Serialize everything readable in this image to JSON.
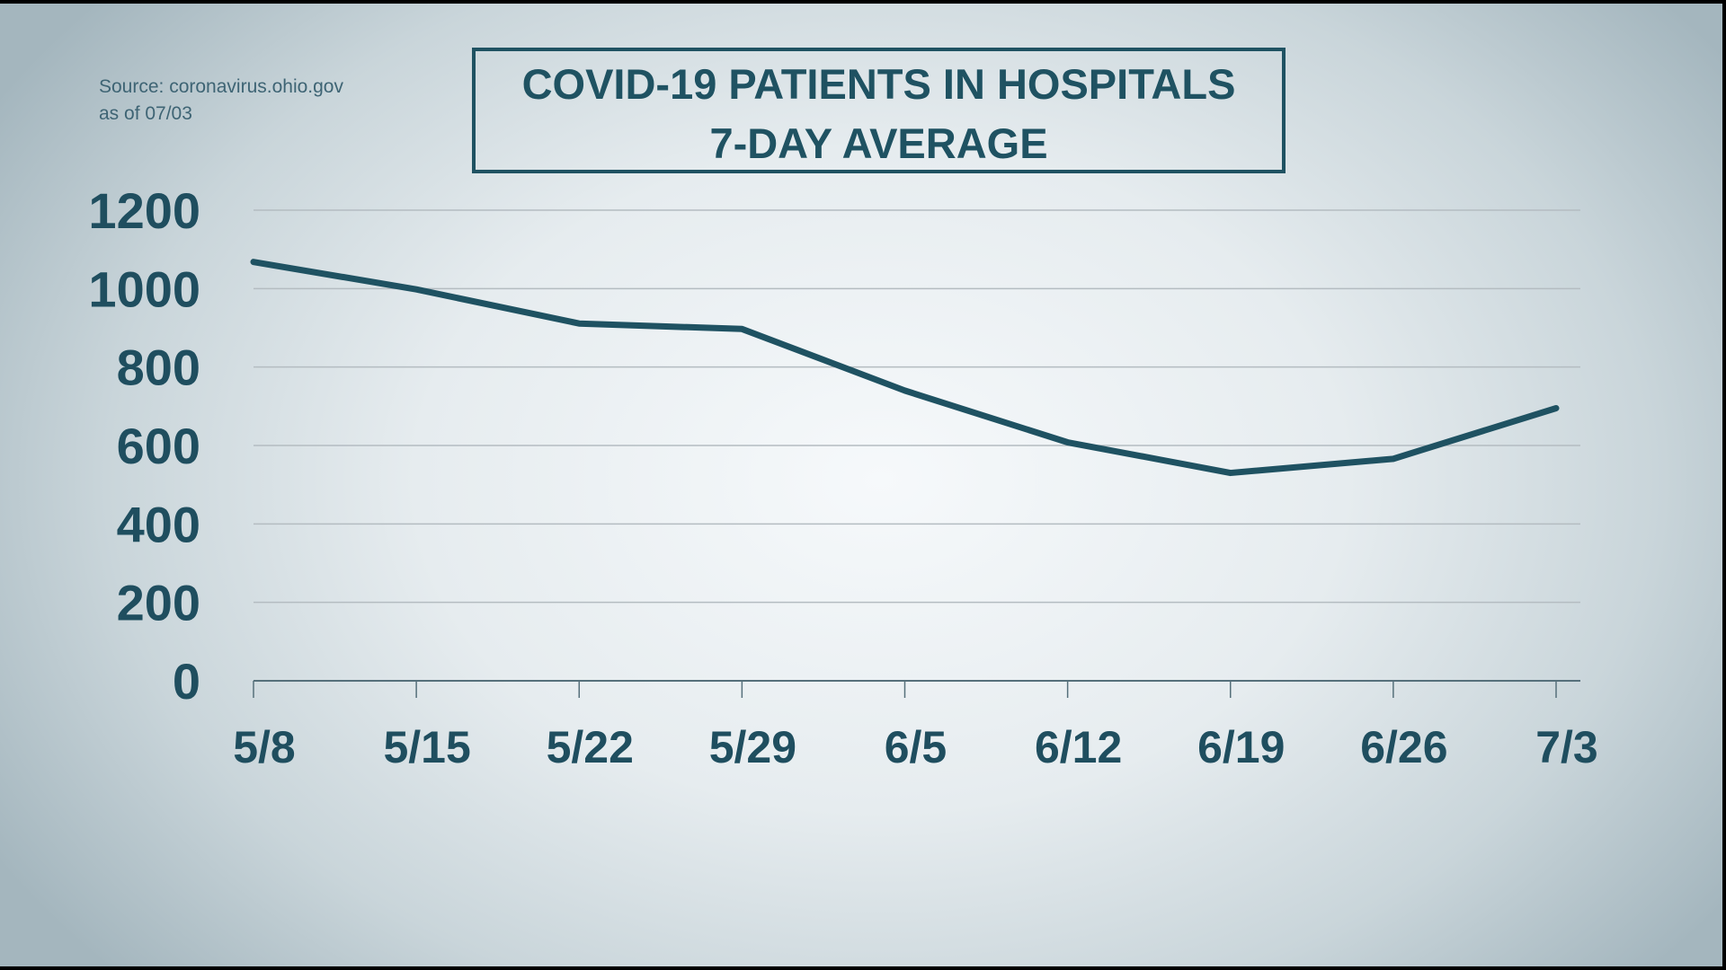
{
  "source": {
    "line1": "Source: coronavirus.ohio.gov",
    "line2": "as of 07/03"
  },
  "chart_data": {
    "type": "line",
    "title": "COVID-19 PATIENTS IN HOSPITALS",
    "subtitle": "7-DAY AVERAGE",
    "categories": [
      "5/8",
      "5/15",
      "5/22",
      "5/29",
      "6/5",
      "6/12",
      "6/19",
      "6/26",
      "7/3"
    ],
    "values": [
      1068,
      998,
      911,
      897,
      740,
      608,
      530,
      566,
      695
    ],
    "yticks": [
      0,
      200,
      400,
      600,
      800,
      1000,
      1200
    ],
    "ylim": [
      0,
      1200
    ],
    "grid": true,
    "colors": {
      "line": "#1f5262",
      "grid": "#b4bcc1",
      "text": "#1f4e5f"
    }
  }
}
